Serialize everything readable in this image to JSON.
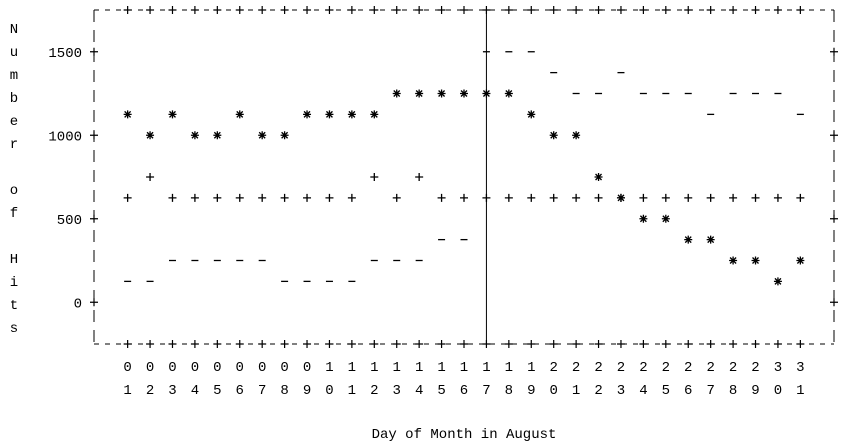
{
  "chart_data": {
    "type": "scatter",
    "y_label": "Number of Hits",
    "x_label": "Day of Month in August",
    "categories": [
      "01",
      "02",
      "03",
      "04",
      "05",
      "06",
      "07",
      "08",
      "09",
      "10",
      "11",
      "12",
      "13",
      "14",
      "15",
      "16",
      "17",
      "18",
      "19",
      "20",
      "21",
      "22",
      "23",
      "24",
      "25",
      "26",
      "27",
      "28",
      "29",
      "30",
      "31"
    ],
    "series": [
      {
        "marker": "asterisk",
        "color": "#000000",
        "values": [
          1125,
          1000,
          1125,
          1000,
          1000,
          1125,
          1000,
          1000,
          1125,
          1125,
          1125,
          1125,
          1250,
          1250,
          1250,
          1250,
          1250,
          1250,
          1125,
          1000,
          1000,
          750,
          625,
          500,
          500,
          375,
          375,
          250,
          250,
          125,
          250
        ]
      },
      {
        "marker": "plus",
        "color": "#000000",
        "values": [
          625,
          750,
          625,
          625,
          625,
          625,
          625,
          625,
          625,
          625,
          625,
          750,
          625,
          750,
          625,
          625,
          625,
          625,
          625,
          625,
          625,
          625,
          625,
          625,
          625,
          625,
          625,
          625,
          625,
          625,
          625
        ]
      },
      {
        "marker": "dash",
        "color": "#000000",
        "values": [
          125,
          125,
          250,
          250,
          250,
          250,
          250,
          125,
          125,
          125,
          125,
          250,
          250,
          250,
          375,
          375,
          1500,
          1500,
          1500,
          1375,
          1250,
          1250,
          1375,
          1250,
          1250,
          1250,
          1125,
          1250,
          1250,
          1250,
          1125
        ]
      }
    ],
    "ylim": [
      -250,
      1750
    ],
    "yticks": [
      0,
      500,
      1000,
      1500
    ]
  }
}
